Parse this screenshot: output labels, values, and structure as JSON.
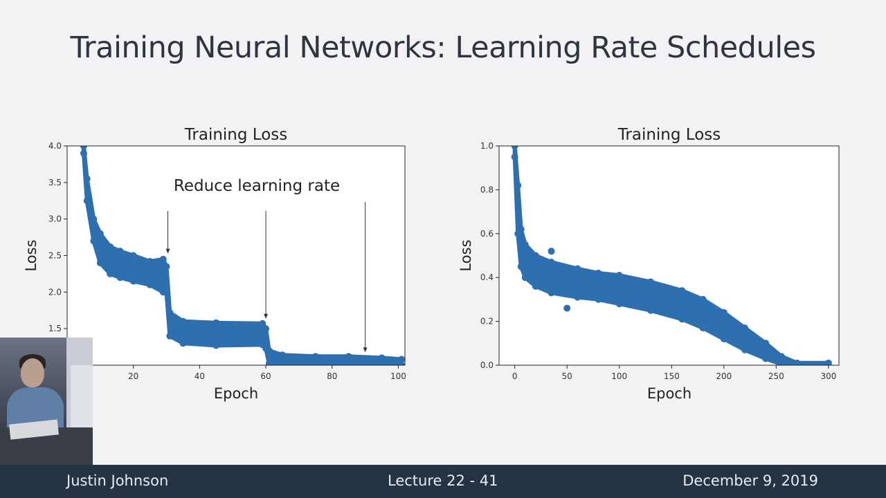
{
  "slide": {
    "title": "Training Neural Networks: Learning Rate Schedules"
  },
  "footer": {
    "author": "Justin Johnson",
    "lecture": "Lecture 22 - 41",
    "date": "December 9, 2019"
  },
  "colors": {
    "series": "#2e6fb0",
    "footer_bg": "#253344"
  },
  "chart_data": [
    {
      "type": "scatter",
      "title": "Training Loss",
      "xlabel": "Epoch",
      "ylabel": "Loss",
      "xlim": [
        0,
        102
      ],
      "ylim": [
        1.0,
        4.0
      ],
      "xticks": [
        20,
        40,
        60,
        80,
        100
      ],
      "yticks": [
        1.5,
        2.0,
        2.5,
        3.0,
        3.5,
        4.0
      ],
      "ytick_labels": [
        "1.5",
        "2.0",
        "2.5",
        "3.0",
        "3.5",
        "4.0"
      ],
      "annotation": {
        "text": "Reduce learning rate",
        "arrows_at_epoch": [
          30,
          60,
          90
        ]
      },
      "series_envelope": {
        "x": [
          5,
          6,
          8,
          10,
          13,
          16,
          20,
          25,
          29,
          30,
          31,
          35,
          45,
          59,
          60,
          61,
          65,
          75,
          85,
          95,
          101
        ],
        "upper": [
          4.0,
          3.55,
          3.0,
          2.8,
          2.62,
          2.56,
          2.5,
          2.42,
          2.45,
          2.35,
          1.72,
          1.6,
          1.58,
          1.57,
          1.5,
          1.2,
          1.14,
          1.12,
          1.12,
          1.1,
          1.08
        ],
        "lower": [
          3.9,
          3.25,
          2.7,
          2.4,
          2.25,
          2.2,
          2.15,
          2.1,
          2.0,
          2.0,
          1.4,
          1.3,
          1.27,
          1.28,
          1.23,
          1.02,
          1.0,
          1.0,
          1.0,
          1.0,
          1.0
        ]
      }
    },
    {
      "type": "scatter",
      "title": "Training Loss",
      "xlabel": "Epoch",
      "ylabel": "Loss",
      "xlim": [
        -15,
        310
      ],
      "ylim": [
        0.0,
        1.0
      ],
      "xticks": [
        0,
        50,
        100,
        150,
        200,
        250,
        300
      ],
      "yticks": [
        0.0,
        0.2,
        0.4,
        0.6,
        0.8,
        1.0
      ],
      "ytick_labels": [
        "0.0",
        "0.2",
        "0.4",
        "0.6",
        "0.8",
        "1.0"
      ],
      "series_envelope": {
        "x": [
          0,
          3,
          6,
          10,
          20,
          35,
          60,
          80,
          100,
          130,
          160,
          180,
          200,
          220,
          240,
          255,
          270,
          300
        ],
        "upper": [
          1.0,
          0.82,
          0.62,
          0.55,
          0.5,
          0.47,
          0.44,
          0.42,
          0.41,
          0.38,
          0.34,
          0.3,
          0.24,
          0.17,
          0.1,
          0.04,
          0.01,
          0.01
        ],
        "lower": [
          0.95,
          0.6,
          0.45,
          0.4,
          0.36,
          0.33,
          0.31,
          0.3,
          0.28,
          0.25,
          0.21,
          0.17,
          0.12,
          0.07,
          0.03,
          0.005,
          0.0,
          0.0
        ]
      },
      "outliers": [
        [
          35,
          0.52
        ],
        [
          50,
          0.26
        ],
        [
          165,
          0.29
        ]
      ]
    }
  ]
}
